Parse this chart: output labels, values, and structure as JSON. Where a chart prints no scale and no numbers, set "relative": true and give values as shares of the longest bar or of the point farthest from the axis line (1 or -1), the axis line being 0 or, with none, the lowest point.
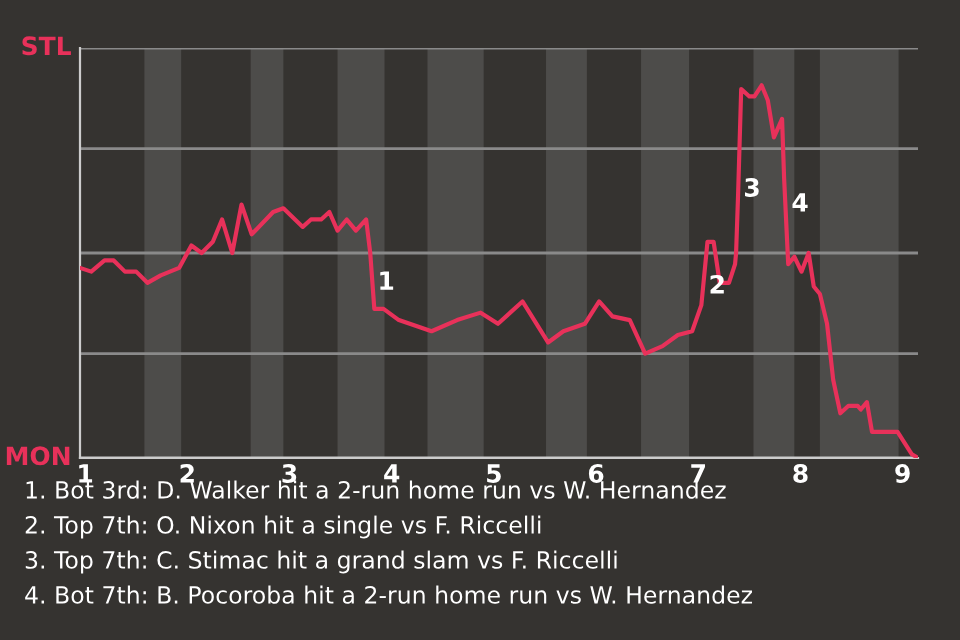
{
  "chart_data": {
    "type": "line",
    "color": "#e8315a",
    "relative": true,
    "x": [
      0.95,
      1.06,
      1.19,
      1.28,
      1.39,
      1.5,
      1.61,
      1.74,
      1.92,
      2.04,
      2.14,
      2.25,
      2.34,
      2.44,
      2.53,
      2.63,
      2.84,
      2.94,
      3.13,
      3.21,
      3.31,
      3.39,
      3.47,
      3.56,
      3.65,
      3.75,
      3.79,
      3.83,
      3.92,
      4.07,
      4.39,
      4.64,
      4.87,
      5.04,
      5.28,
      5.53,
      5.68,
      5.89,
      6.03,
      6.16,
      6.33,
      6.48,
      6.65,
      6.8,
      6.94,
      7.03,
      7.09,
      7.15,
      7.21,
      7.3,
      7.36,
      7.37,
      7.39,
      7.42,
      7.5,
      7.55,
      7.62,
      7.68,
      7.74,
      7.82,
      7.84,
      7.88,
      7.94,
      8.01,
      8.08,
      8.13,
      8.19,
      8.26,
      8.32,
      8.39,
      8.47,
      8.56,
      8.59,
      8.65,
      8.7,
      8.95,
      9.02,
      9.09,
      9.15
    ],
    "values": [
      0.51,
      0.5,
      0.53,
      0.53,
      0.5,
      0.5,
      0.47,
      0.49,
      0.51,
      0.57,
      0.55,
      0.58,
      0.64,
      0.55,
      0.68,
      0.6,
      0.66,
      0.67,
      0.62,
      0.64,
      0.64,
      0.66,
      0.61,
      0.64,
      0.61,
      0.64,
      0.55,
      0.4,
      0.4,
      0.37,
      0.34,
      0.37,
      0.39,
      0.36,
      0.42,
      0.31,
      0.34,
      0.36,
      0.42,
      0.38,
      0.37,
      0.28,
      0.3,
      0.33,
      0.34,
      0.41,
      0.58,
      0.58,
      0.47,
      0.47,
      0.52,
      0.55,
      0.71,
      0.99,
      0.97,
      0.97,
      1,
      0.96,
      0.86,
      0.91,
      0.75,
      0.52,
      0.54,
      0.5,
      0.55,
      0.46,
      0.44,
      0.36,
      0.21,
      0.12,
      0.14,
      0.14,
      0.13,
      0.15,
      0.07,
      0.07,
      0.04,
      0.01,
      0
    ],
    "xlim": [
      0.95,
      9.15
    ],
    "xticks": [
      1,
      2,
      3,
      4,
      5,
      6,
      7,
      8,
      9
    ],
    "tick_labels": "x",
    "legend": false,
    "marker": "none",
    "line_style": "solid",
    "ref_lines": [
      {
        "axis": "y",
        "value": 0,
        "label": "MON",
        "color": "#cccccc"
      },
      {
        "axis": "y",
        "value": 0.28,
        "label": null,
        "color": "#8a8a8a"
      },
      {
        "axis": "y",
        "value": 0.55,
        "label": null,
        "color": "#8a8a8a"
      },
      {
        "axis": "y",
        "value": 0.83,
        "label": null,
        "color": "#8a8a8a"
      },
      {
        "axis": "y",
        "value": 1.1,
        "label": "STL",
        "color": "#8a8a8a"
      }
    ],
    "bands": [
      {
        "axis": "x",
        "from": 1.58,
        "to": 1.94,
        "color": "#4d4c4a"
      },
      {
        "axis": "x",
        "from": 2.62,
        "to": 2.94,
        "color": "#4d4c4a"
      },
      {
        "axis": "x",
        "from": 3.47,
        "to": 3.93,
        "color": "#4d4c4a"
      },
      {
        "axis": "x",
        "from": 4.35,
        "to": 4.9,
        "color": "#4d4c4a"
      },
      {
        "axis": "x",
        "from": 5.51,
        "to": 5.91,
        "color": "#4d4c4a"
      },
      {
        "axis": "x",
        "from": 6.44,
        "to": 6.91,
        "color": "#4d4c4a"
      },
      {
        "axis": "x",
        "from": 7.54,
        "to": 7.94,
        "color": "#4d4c4a"
      },
      {
        "axis": "x",
        "from": 8.19,
        "to": 8.96,
        "color": "#4d4c4a"
      }
    ],
    "annotations": [
      {
        "text": "1",
        "x": 3.81,
        "y": 0.47
      },
      {
        "text": "2",
        "x": 7.05,
        "y": 0.46
      },
      {
        "text": "3",
        "x": 7.39,
        "y": 0.72
      },
      {
        "text": "4",
        "x": 7.86,
        "y": 0.68
      },
      "1. Bot 3rd: D. Walker hit a 2-run home run vs W. Hernandez",
      "2. Top 7th: O. Nixon hit a single vs F. Riccelli",
      "3. Top 7th: C. Stimac hit a grand slam vs F. Riccelli",
      "4. Bot 7th: B. Pocoroba hit a 2-run home run vs W. Hernandez"
    ]
  }
}
